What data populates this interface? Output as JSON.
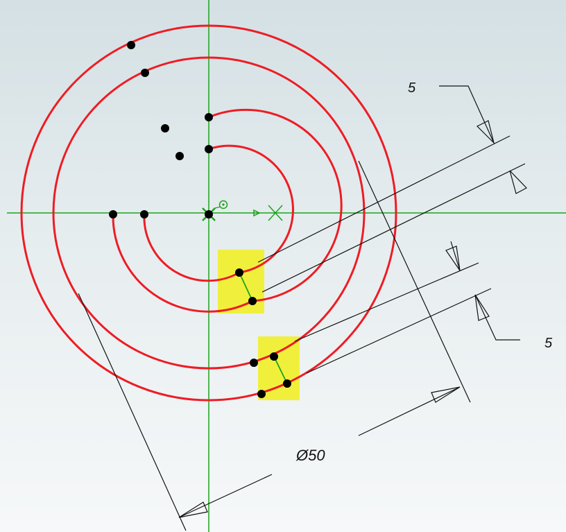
{
  "colors": {
    "curve": "#ee1c24",
    "axis": "#1aa31a",
    "highlight": "#f0f03c",
    "dimension": "#111111",
    "point": "#000000"
  },
  "dimensions": {
    "gap_top": "5",
    "gap_bottom": "5",
    "diameter": "Ø50"
  },
  "icons": {
    "origin": "origin-marker-icon",
    "axis_end": "axis-end-marker-icon"
  }
}
